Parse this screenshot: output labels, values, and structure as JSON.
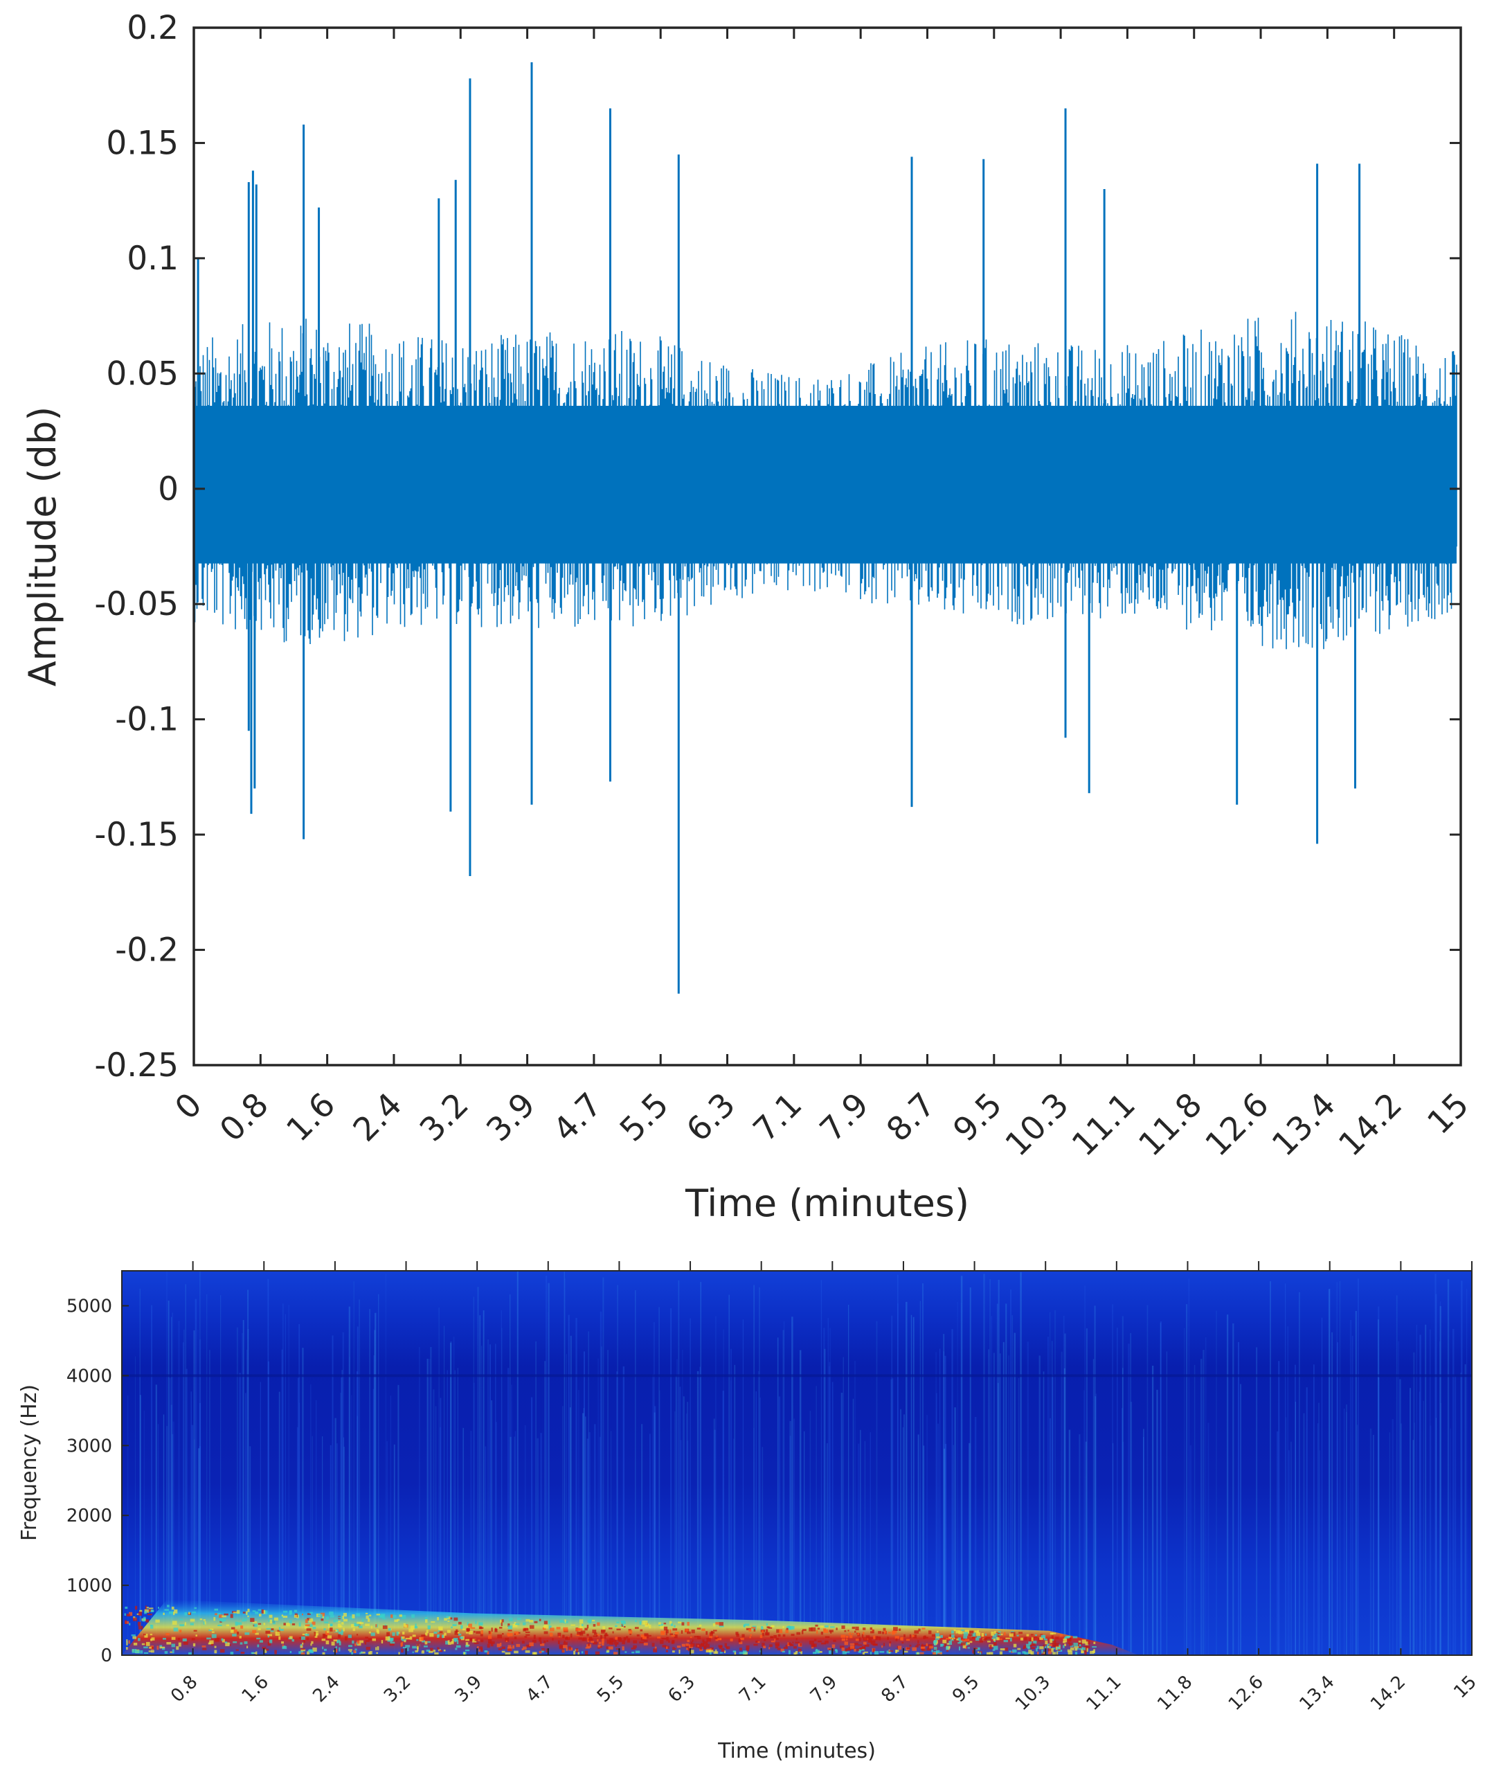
{
  "colors": {
    "waveform": "#0072bd",
    "axis": "#262626",
    "background": "#ffffff",
    "spectrogram_colormap": [
      "#00008f",
      "#0000ff",
      "#00ffff",
      "#ffff00",
      "#ff0000",
      "#800000"
    ]
  },
  "chart_data": [
    {
      "type": "line",
      "title": "",
      "xlabel": "Time (minutes)",
      "ylabel": "Amplitude (db)",
      "xlim": [
        0,
        15
      ],
      "ylim": [
        -0.25,
        0.2
      ],
      "x_tick_labels": [
        "0",
        "0.8",
        "1.6",
        "2.4",
        "3.2",
        "3.9",
        "4.7",
        "5.5",
        "6.3",
        "7.1",
        "7.9",
        "8.7",
        "9.5",
        "10.3",
        "11.1",
        "11.8",
        "12.6",
        "13.4",
        "14.2",
        "15"
      ],
      "y_tick_labels": [
        "0.2",
        "0.15",
        "0.1",
        "0.05",
        "0",
        "-0.05",
        "-0.1",
        "-0.15",
        "-0.2",
        "-0.25"
      ],
      "grid": false,
      "envelope": {
        "typical_positive": 0.05,
        "typical_negative": -0.045
      },
      "peaks": [
        {
          "x": 0.05,
          "y": 0.1
        },
        {
          "x": 0.65,
          "y": 0.133
        },
        {
          "x": 0.7,
          "y": 0.138
        },
        {
          "x": 0.74,
          "y": 0.132
        },
        {
          "x": 1.3,
          "y": 0.158
        },
        {
          "x": 1.48,
          "y": 0.122
        },
        {
          "x": 2.9,
          "y": 0.126
        },
        {
          "x": 3.1,
          "y": 0.134
        },
        {
          "x": 3.27,
          "y": 0.178
        },
        {
          "x": 4.0,
          "y": 0.185
        },
        {
          "x": 4.93,
          "y": 0.165
        },
        {
          "x": 5.74,
          "y": 0.145
        },
        {
          "x": 8.5,
          "y": 0.144
        },
        {
          "x": 9.35,
          "y": 0.143
        },
        {
          "x": 10.32,
          "y": 0.165
        },
        {
          "x": 10.78,
          "y": 0.13
        },
        {
          "x": 13.3,
          "y": 0.141
        },
        {
          "x": 13.8,
          "y": 0.141
        },
        {
          "x": 0.65,
          "y": -0.105
        },
        {
          "x": 0.68,
          "y": -0.141
        },
        {
          "x": 0.72,
          "y": -0.13
        },
        {
          "x": 1.3,
          "y": -0.152
        },
        {
          "x": 3.27,
          "y": -0.168
        },
        {
          "x": 3.04,
          "y": -0.14
        },
        {
          "x": 4.0,
          "y": -0.137
        },
        {
          "x": 4.93,
          "y": -0.127
        },
        {
          "x": 5.74,
          "y": -0.219
        },
        {
          "x": 8.5,
          "y": -0.138
        },
        {
          "x": 10.32,
          "y": -0.108
        },
        {
          "x": 10.6,
          "y": -0.132
        },
        {
          "x": 12.35,
          "y": -0.137
        },
        {
          "x": 13.3,
          "y": -0.154
        },
        {
          "x": 13.75,
          "y": -0.13
        }
      ]
    },
    {
      "type": "heatmap",
      "title": "",
      "xlabel": "Time (minutes)",
      "ylabel": "Frequency (Hz)",
      "xlim": [
        0,
        15
      ],
      "ylim": [
        0,
        5500
      ],
      "x_tick_labels": [
        "0.8",
        "1.6",
        "2.4",
        "3.2",
        "3.9",
        "4.7",
        "5.5",
        "6.3",
        "7.1",
        "7.9",
        "8.7",
        "9.5",
        "10.3",
        "11.1",
        "11.8",
        "12.6",
        "13.4",
        "14.2",
        "15"
      ],
      "y_ticks": [
        0,
        1000,
        2000,
        3000,
        4000,
        5000
      ],
      "y_tick_labels": [
        "0",
        "1000",
        "2000",
        "3000",
        "4000",
        "5000"
      ],
      "grid": false,
      "energy_band": {
        "description": "high energy at low frequencies",
        "points": [
          {
            "time": 0.5,
            "freq_high": 800
          },
          {
            "time": 3.9,
            "freq_high": 600
          },
          {
            "time": 7.1,
            "freq_high": 500
          },
          {
            "time": 10.3,
            "freq_high": 350
          },
          {
            "time": 11.0,
            "freq_high": 150
          }
        ],
        "peak_freq": 250,
        "peak_time_range": [
          3.9,
          9.0
        ]
      }
    }
  ]
}
